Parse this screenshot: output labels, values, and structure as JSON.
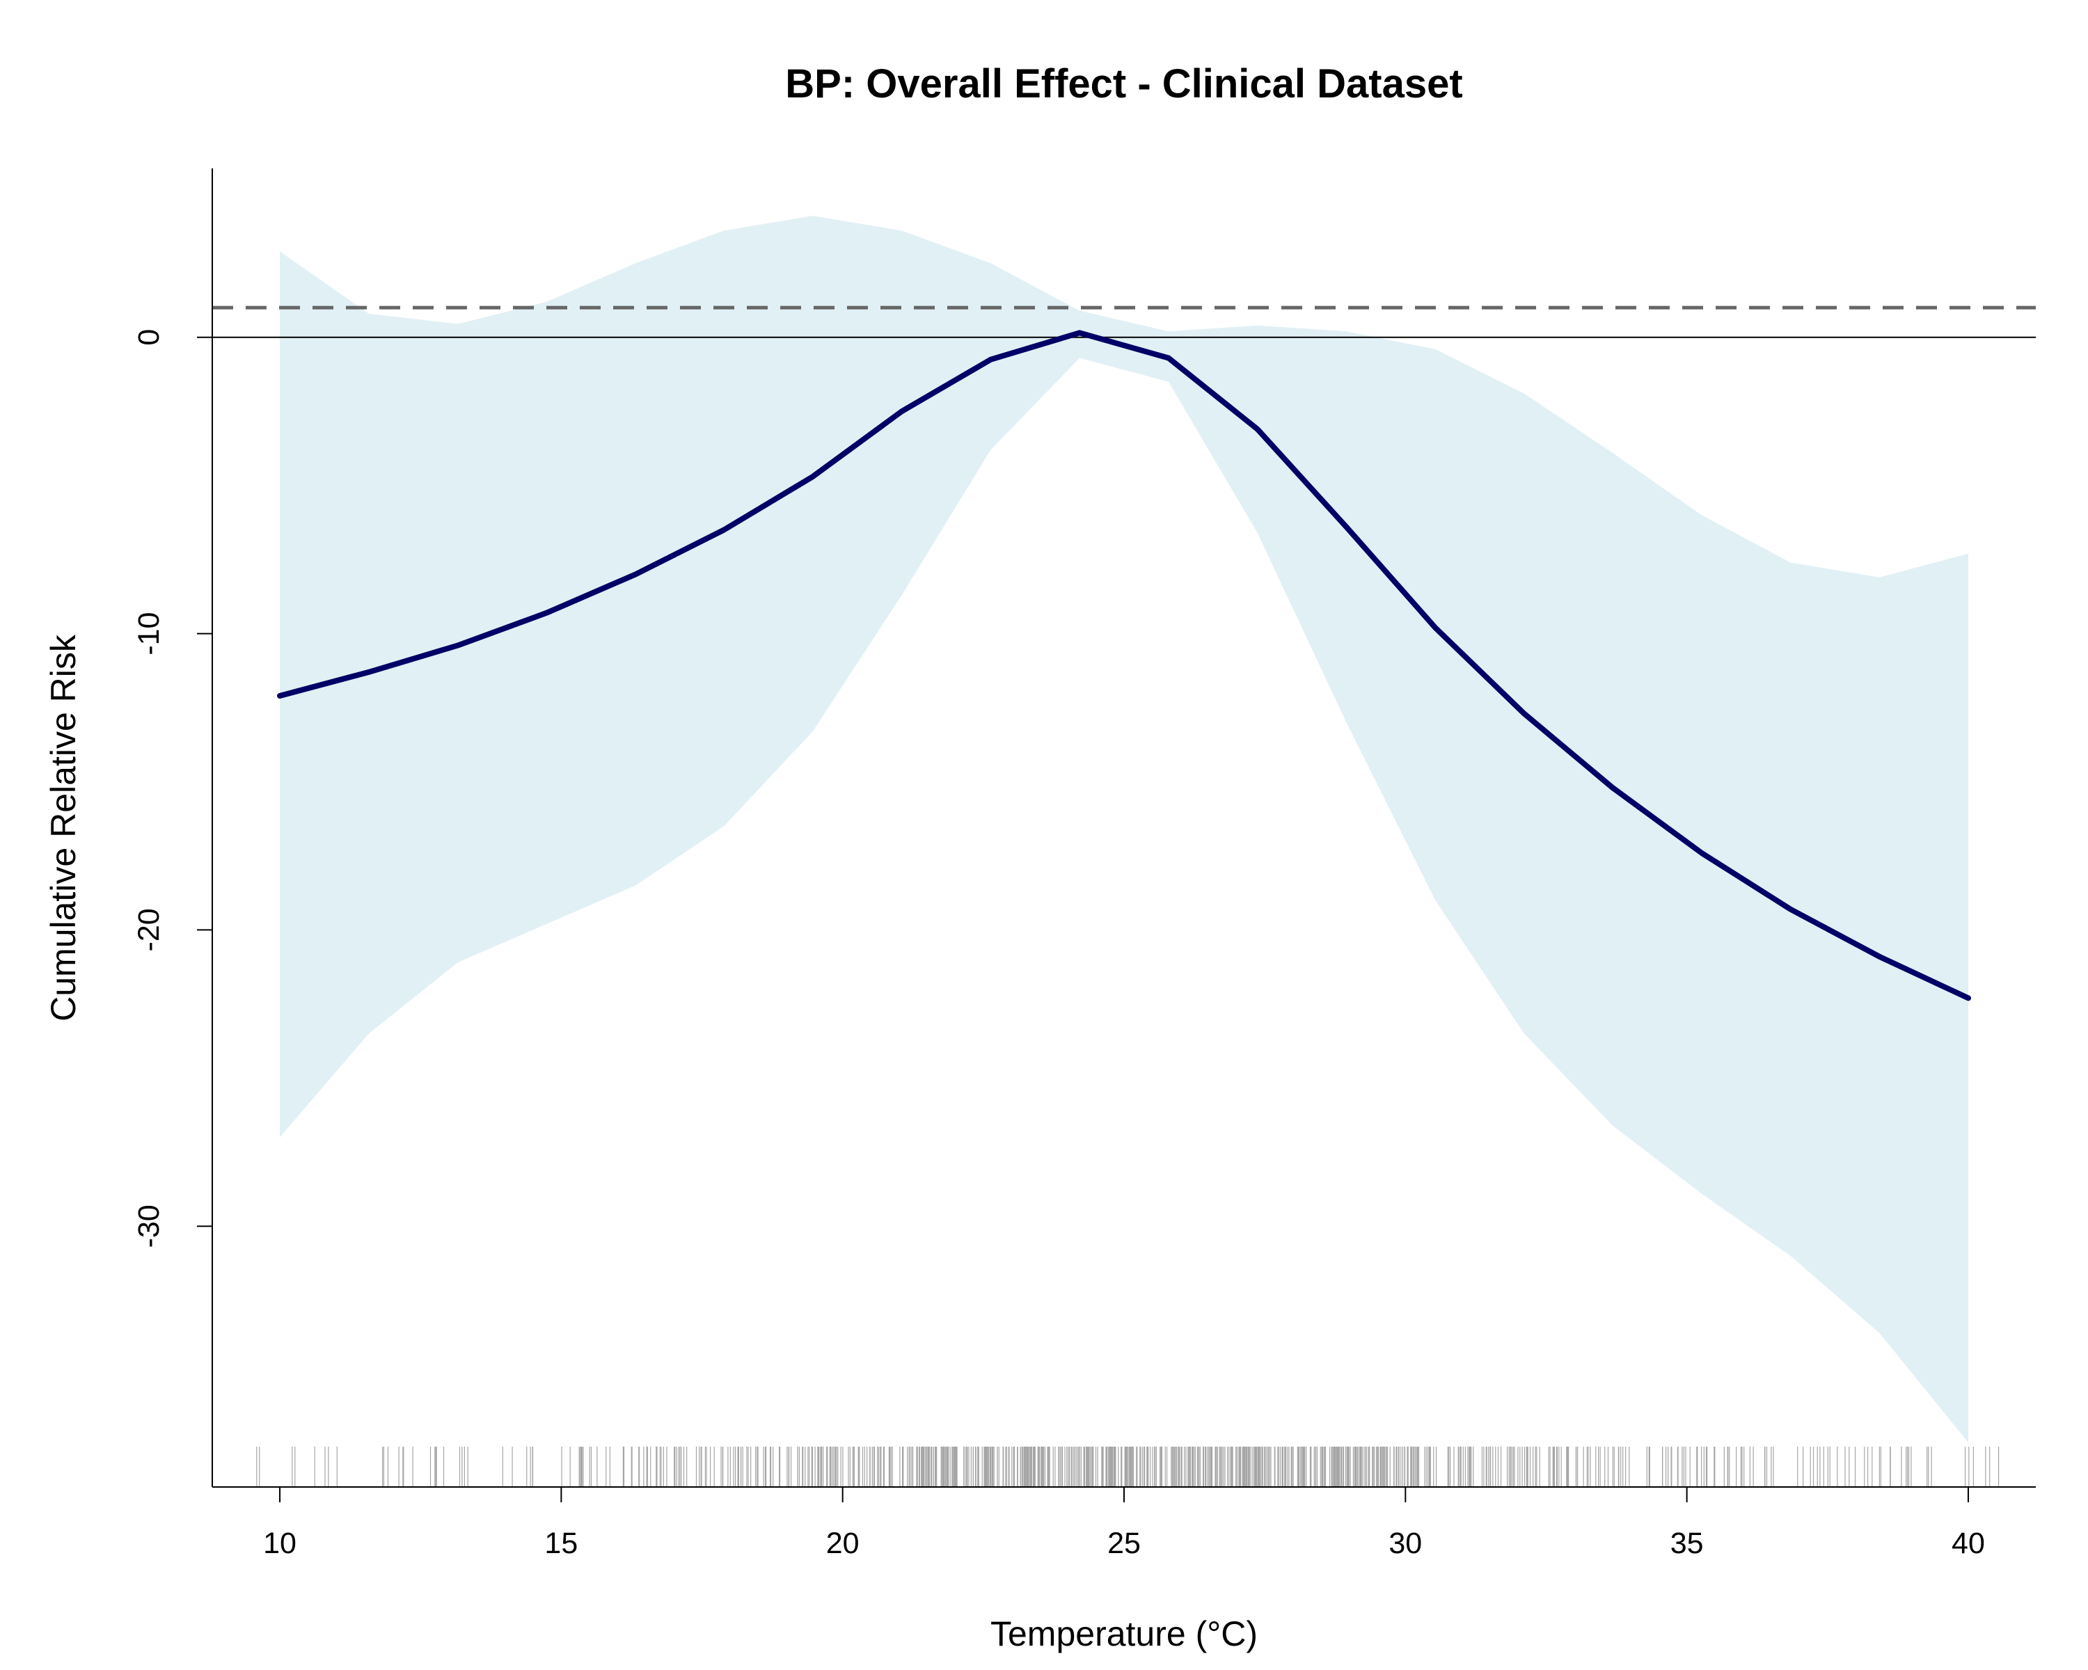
{
  "chart_data": {
    "type": "line",
    "title": "BP: Overall Effect - Clinical Dataset",
    "xlabel": "Temperature (°C)",
    "ylabel": "Cumulative Relative Risk",
    "xlim": [
      8.8,
      41.2
    ],
    "ylim": [
      -38.8,
      5.7
    ],
    "x_ticks": [
      10,
      15,
      20,
      25,
      30,
      35,
      40
    ],
    "y_ticks": [
      0,
      -10,
      -20,
      -30
    ],
    "grid": false,
    "legend": "none",
    "reference_lines": [
      {
        "y": 0,
        "style": "solid",
        "color": "#000000"
      },
      {
        "y": 1,
        "style": "dashed",
        "color": "#666666"
      }
    ],
    "series": [
      {
        "x": [
          10,
          11.58,
          13.16,
          14.74,
          16.32,
          17.89,
          19.47,
          21.05,
          22.63,
          24.21,
          25.79,
          27.37,
          28.95,
          30.53,
          32.11,
          33.68,
          35.26,
          36.84,
          38.42,
          40
        ],
        "values": [
          -12.1,
          -11.3,
          -10.4,
          -9.3,
          -8.0,
          -6.5,
          -4.7,
          -2.5,
          -0.75,
          0.15,
          -0.7,
          -3.1,
          -6.4,
          -9.8,
          -12.7,
          -15.2,
          -17.4,
          -19.3,
          -20.9,
          -22.3
        ],
        "lower": [
          -27.0,
          -23.5,
          -21.1,
          -19.8,
          -18.5,
          -16.5,
          -13.3,
          -8.7,
          -3.8,
          -0.7,
          -1.5,
          -6.6,
          -13.0,
          -19.0,
          -23.5,
          -26.6,
          -28.9,
          -31.0,
          -33.6,
          -37.3
        ],
        "upper": [
          2.9,
          0.8,
          0.45,
          1.2,
          2.5,
          3.6,
          4.1,
          3.6,
          2.5,
          0.9,
          0.2,
          0.4,
          0.2,
          -0.4,
          -1.9,
          -3.9,
          -6.0,
          -7.6,
          -8.1,
          -7.3
        ],
        "color": "#000066",
        "band_color": "#e1f0f5"
      }
    ],
    "rug": {
      "color": "#000000",
      "range": [
        9.5,
        40.6
      ],
      "mode": 25.3,
      "spread": 6.2,
      "count": 900
    }
  }
}
